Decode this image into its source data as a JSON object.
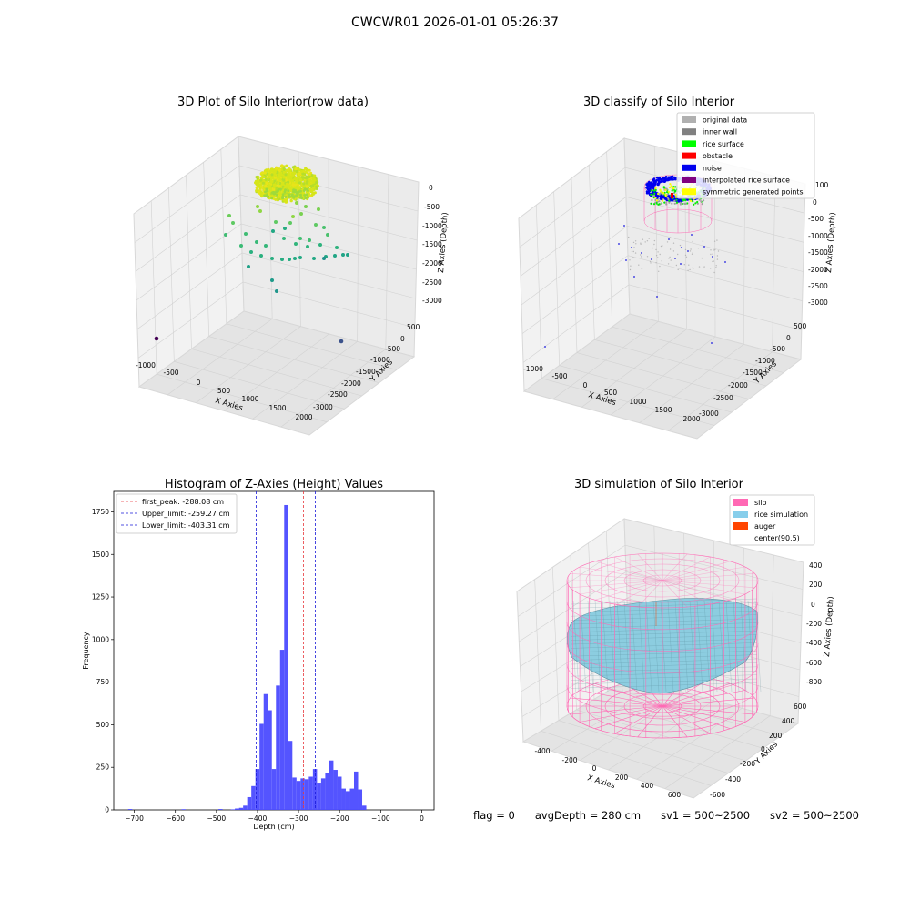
{
  "suptitle": "CWCWR01 2026-01-01 05:26:37",
  "status": {
    "flag": "flag = 0",
    "avg": "avgDepth = 280 cm",
    "sv1": "sv1 = 500~2500",
    "sv2": "sv2 = 500~2500"
  },
  "colors": {
    "hist_bar": "#4b4bff",
    "first_peak": "#e8383d",
    "limit_line": "#1a1ad8",
    "silo": "#ff69b4",
    "rice": "#8ccde0",
    "auger": "#ff4500"
  },
  "chart_data": [
    {
      "type": "scatter",
      "title": "3D Plot of Silo Interior(row data)",
      "xlabel": "X Axies",
      "ylabel": "Y Axies",
      "zlabel": "Z Axies (Depth)",
      "xticks": [
        "-1000",
        "-500",
        "0",
        "500",
        "1000",
        "1500",
        "2000"
      ],
      "yticks": [
        "500",
        "0",
        "-500",
        "-1000",
        "-1500",
        "-2000",
        "-2500",
        "-3000"
      ],
      "zticks": [
        "0",
        "-500",
        "-1000",
        "-1500",
        "-2000",
        "-2500",
        "-3000"
      ],
      "colormap": "viridis",
      "grid": true
    },
    {
      "type": "scatter",
      "title": "3D classify of Silo Interior",
      "xlabel": "X Axies",
      "ylabel": "Y Axies",
      "zlabel": "Z Axies (Depth)",
      "xticks": [
        "-1000",
        "-500",
        "0",
        "500",
        "1000",
        "1500",
        "2000"
      ],
      "yticks": [
        "500",
        "0",
        "-500",
        "-1000",
        "-1500",
        "-2000",
        "-2500",
        "-3000"
      ],
      "zticks": [
        "100",
        "0",
        "-500",
        "-1000",
        "-1500",
        "-2000",
        "-2500",
        "-3000"
      ],
      "legend_position": "top-right",
      "legend": [
        {
          "label": "original data",
          "color": "#b0b0b0"
        },
        {
          "label": "inner wall",
          "color": "#808080"
        },
        {
          "label": "rice surface",
          "color": "#00ff00"
        },
        {
          "label": "obstacle",
          "color": "#ff0000"
        },
        {
          "label": "noise",
          "color": "#0000ee"
        },
        {
          "label": "interpolated rice surface",
          "color": "#800080"
        },
        {
          "label": "symmetric generated points",
          "color": "#ffff00"
        }
      ],
      "grid": true
    },
    {
      "type": "bar",
      "title": "Histogram of Z-Axies (Height) Values",
      "xlabel": "Depth (cm)",
      "ylabel": "Frequency",
      "xlim": [
        -750,
        30
      ],
      "ylim": [
        0,
        1870
      ],
      "xticks": [
        -700,
        -600,
        -500,
        -400,
        -300,
        -200,
        -100,
        0
      ],
      "yticks": [
        0,
        250,
        500,
        750,
        1000,
        1250,
        1500,
        1750
      ],
      "bin_edges": [
        -715,
        -705,
        -585,
        -575,
        -495,
        -485,
        -465,
        -455,
        -445,
        -435,
        -425,
        -415,
        -405,
        -395,
        -385,
        -375,
        -365,
        -355,
        -345,
        -335,
        -325,
        -315,
        -305,
        -295,
        -285,
        -275,
        -265,
        -255,
        -245,
        -235,
        -225,
        -215,
        -205,
        -195,
        -185,
        -175,
        -165,
        -155,
        -145,
        -135,
        -125,
        -115,
        -105,
        -95,
        -85,
        -75,
        -65,
        -55,
        -45,
        -35,
        -25,
        -15,
        -5
      ],
      "bins": [
        {
          "from": -715,
          "to": -705,
          "count": 5
        },
        {
          "from": -585,
          "to": -575,
          "count": 4
        },
        {
          "from": -495,
          "to": -485,
          "count": 5
        },
        {
          "from": -465,
          "to": -455,
          "count": 3
        },
        {
          "from": -455,
          "to": -445,
          "count": 8
        },
        {
          "from": -445,
          "to": -435,
          "count": 12
        },
        {
          "from": -435,
          "to": -425,
          "count": 25
        },
        {
          "from": -425,
          "to": -415,
          "count": 75
        },
        {
          "from": -415,
          "to": -405,
          "count": 140
        },
        {
          "from": -405,
          "to": -395,
          "count": 240
        },
        {
          "from": -395,
          "to": -385,
          "count": 505
        },
        {
          "from": -385,
          "to": -375,
          "count": 680
        },
        {
          "from": -375,
          "to": -365,
          "count": 585
        },
        {
          "from": -365,
          "to": -355,
          "count": 240
        },
        {
          "from": -355,
          "to": -345,
          "count": 730
        },
        {
          "from": -345,
          "to": -335,
          "count": 940
        },
        {
          "from": -335,
          "to": -325,
          "count": 1790
        },
        {
          "from": -325,
          "to": -315,
          "count": 405
        },
        {
          "from": -315,
          "to": -305,
          "count": 190
        },
        {
          "from": -305,
          "to": -295,
          "count": 170
        },
        {
          "from": -295,
          "to": -285,
          "count": 185
        },
        {
          "from": -285,
          "to": -275,
          "count": 180
        },
        {
          "from": -275,
          "to": -265,
          "count": 195
        },
        {
          "from": -265,
          "to": -255,
          "count": 240
        },
        {
          "from": -255,
          "to": -245,
          "count": 160
        },
        {
          "from": -245,
          "to": -235,
          "count": 185
        },
        {
          "from": -235,
          "to": -225,
          "count": 215
        },
        {
          "from": -225,
          "to": -215,
          "count": 290
        },
        {
          "from": -215,
          "to": -205,
          "count": 235
        },
        {
          "from": -205,
          "to": -195,
          "count": 195
        },
        {
          "from": -195,
          "to": -185,
          "count": 125
        },
        {
          "from": -185,
          "to": -175,
          "count": 110
        },
        {
          "from": -175,
          "to": -165,
          "count": 125
        },
        {
          "from": -165,
          "to": -155,
          "count": 225
        },
        {
          "from": -155,
          "to": -145,
          "count": 120
        },
        {
          "from": -145,
          "to": -135,
          "count": 25
        }
      ],
      "vlines": [
        {
          "label": "first_peak: -288.08 cm",
          "x": -288.08,
          "color": "#e8383d"
        },
        {
          "label": "Upper_limit: -259.27 cm",
          "x": -259.27,
          "color": "#1a1ad8"
        },
        {
          "label": "Lower_limit: -403.31 cm",
          "x": -403.31,
          "color": "#1a1ad8"
        }
      ],
      "legend_position": "top-left"
    },
    {
      "type": "surface",
      "title": "3D simulation of Silo Interior",
      "xlabel": "X Axies",
      "ylabel": "Y Axies",
      "zlabel": "Z Axies (Depth)",
      "xticks": [
        "-400",
        "-200",
        "0",
        "200",
        "400",
        "600"
      ],
      "yticks": [
        "600",
        "400",
        "200",
        "0",
        "-200",
        "-400",
        "-600"
      ],
      "zticks": [
        "400",
        "200",
        "0",
        "-200",
        "-400",
        "-600",
        "-800"
      ],
      "legend_position": "top-right",
      "legend": [
        {
          "label": "silo",
          "color": "#ff69b4"
        },
        {
          "label": "rice simulation",
          "color": "#87ceeb"
        },
        {
          "label": "auger",
          "color": "#ff4500"
        },
        {
          "label": "center(90,5)",
          "color": "none"
        }
      ],
      "grid": true
    }
  ]
}
